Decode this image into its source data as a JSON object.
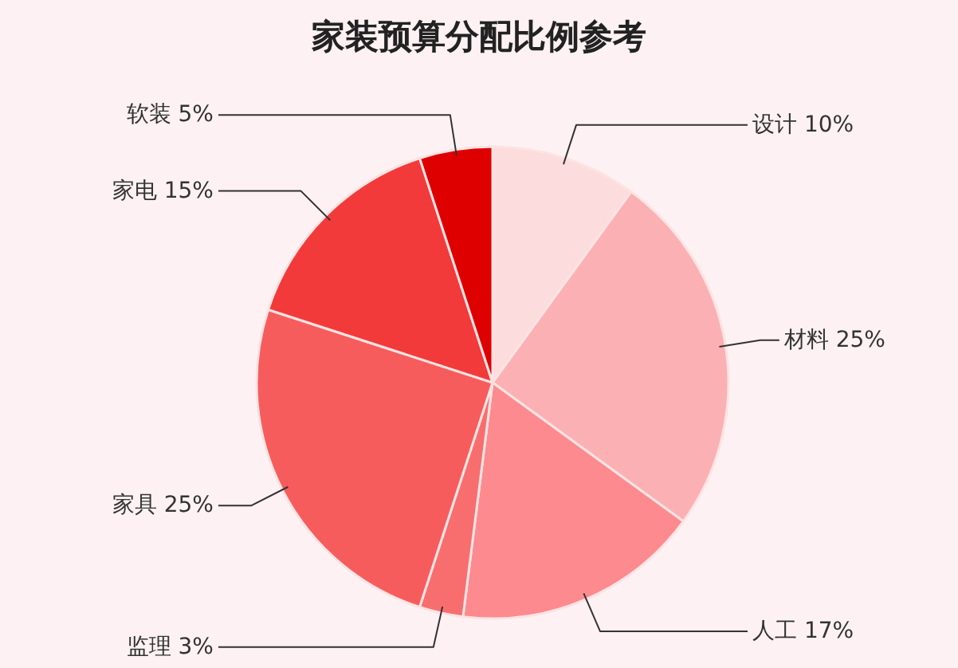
{
  "chart_data": {
    "type": "pie",
    "title": "家装预算分配比例参考",
    "categories": [
      "设计",
      "材料",
      "人工",
      "监理",
      "家具",
      "家电",
      "软装"
    ],
    "values": [
      10,
      25,
      17,
      3,
      25,
      15,
      5
    ],
    "value_labels": [
      "10%",
      "25%",
      "17%",
      "3%",
      "25%",
      "15%",
      "5%"
    ],
    "colors": [
      "#fcdcdc",
      "#fbb1b3",
      "#fc8a8e",
      "#f86e6e",
      "#f75c5c",
      "#f23a3a",
      "#de0000"
    ]
  }
}
